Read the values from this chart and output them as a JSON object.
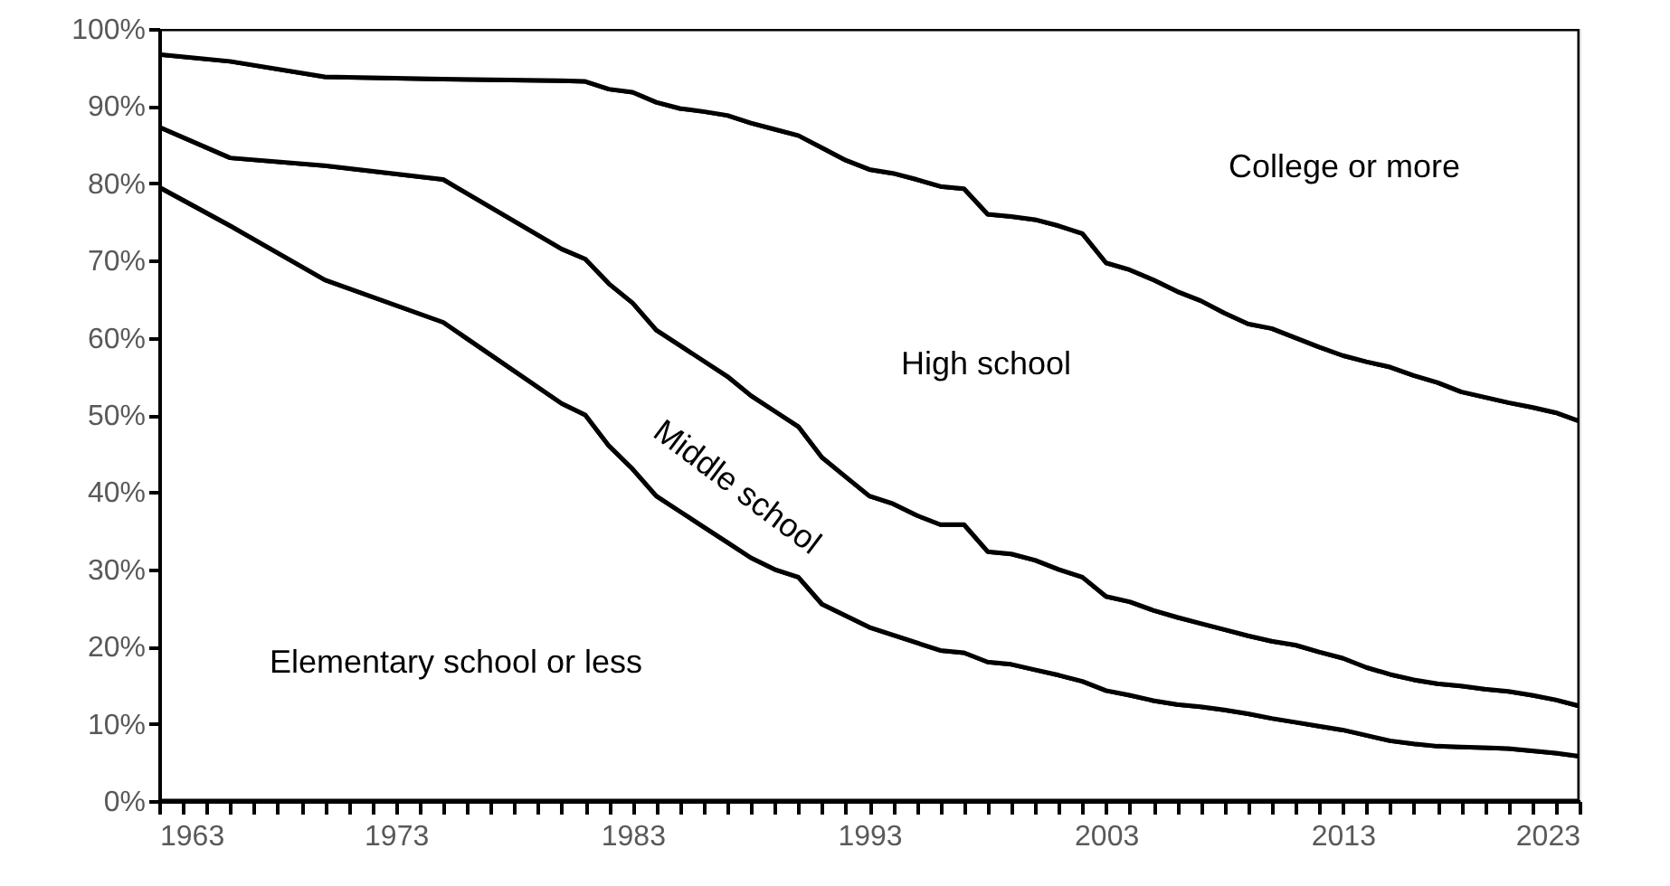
{
  "chart_data": {
    "type": "area",
    "stacked": true,
    "x": [
      1963,
      1966,
      1970,
      1975,
      1980,
      1981,
      1982,
      1983,
      1984,
      1985,
      1986,
      1987,
      1988,
      1989,
      1990,
      1991,
      1992,
      1993,
      1994,
      1995,
      1996,
      1997,
      1998,
      1999,
      2000,
      2001,
      2002,
      2003,
      2004,
      2005,
      2006,
      2007,
      2008,
      2009,
      2010,
      2011,
      2012,
      2013,
      2014,
      2015,
      2016,
      2017,
      2018,
      2019,
      2020,
      2021,
      2022,
      2023
    ],
    "series": [
      {
        "name": "Elementary school or less",
        "color": "#ffffff",
        "values": [
          79.5,
          74.5,
          67.5,
          62,
          51.5,
          50,
          46,
          43,
          39.5,
          37.5,
          35.5,
          33.5,
          31.5,
          30,
          29,
          25.5,
          24,
          22.5,
          21.5,
          20.5,
          19.5,
          19.2,
          18,
          17.7,
          17,
          16.3,
          15.5,
          14.3,
          13.7,
          13,
          12.5,
          12.2,
          11.8,
          11.3,
          10.7,
          10.2,
          9.7,
          9.2,
          8.5,
          7.8,
          7.4,
          7.1,
          7,
          6.9,
          6.8,
          6.5,
          6.2,
          5.8
        ]
      },
      {
        "name": "Middle school",
        "color": "#ffffff",
        "values": [
          7.8,
          8.8,
          14.8,
          18.5,
          20,
          20.2,
          21,
          21.5,
          21.5,
          21.5,
          21.5,
          21.5,
          21,
          20.5,
          19.5,
          19,
          18,
          17,
          17,
          16.5,
          16.3,
          16.6,
          14.3,
          14.3,
          14.2,
          13.7,
          13.5,
          12.2,
          12.1,
          11.7,
          11.3,
          10.8,
          10.4,
          10.1,
          10,
          10,
          9.6,
          9.3,
          8.8,
          8.6,
          8.3,
          8.1,
          7.9,
          7.6,
          7.4,
          7.2,
          6.9,
          6.5
        ]
      },
      {
        "name": "High school",
        "color": "#ffffff",
        "values": [
          9.4,
          12.5,
          11.5,
          13,
          21.8,
          23,
          25.2,
          27.3,
          29.5,
          30.7,
          32.3,
          33.8,
          35.3,
          36.5,
          37.7,
          40.1,
          41,
          42.3,
          42.8,
          43.5,
          43.8,
          43.5,
          43.7,
          43.7,
          44.1,
          44.5,
          44.5,
          43.2,
          43,
          42.8,
          42.2,
          41.8,
          41,
          40.4,
          40.5,
          39.8,
          39.5,
          39.2,
          39.6,
          39.8,
          39.4,
          39,
          38.1,
          37.8,
          37.4,
          37.3,
          37.2,
          36.9
        ]
      },
      {
        "name": "College or more",
        "color": "#ffffff",
        "values": [
          3.3,
          4.2,
          6.2,
          6.5,
          6.7,
          6.8,
          7.8,
          8.2,
          9.5,
          10.3,
          10.7,
          11.2,
          12.2,
          13,
          13.8,
          15.4,
          17,
          18.2,
          18.7,
          19.5,
          20.4,
          20.7,
          24,
          24.3,
          24.7,
          25.5,
          26.5,
          30.3,
          31.2,
          32.5,
          34,
          35.2,
          36.8,
          38.2,
          38.8,
          40,
          41.2,
          42.3,
          43.1,
          43.8,
          44.9,
          45.8,
          47,
          47.7,
          48.4,
          49,
          49.7,
          50.8
        ]
      }
    ],
    "xlim": [
      1963,
      2023
    ],
    "xticks": [
      1963,
      {
        "value": 1964,
        "label": null
      },
      {
        "value": 1965,
        "label": null
      },
      {
        "value": 1966,
        "label": null
      },
      {
        "value": 1967,
        "label": null
      },
      {
        "value": 1968,
        "label": null
      },
      {
        "value": 1969,
        "label": null
      },
      {
        "value": 1970,
        "label": null
      },
      {
        "value": 1971,
        "label": null
      },
      {
        "value": 1972,
        "label": null
      },
      1973,
      {
        "value": 1974,
        "label": null
      },
      {
        "value": 1975,
        "label": null
      },
      {
        "value": 1976,
        "label": null
      },
      {
        "value": 1977,
        "label": null
      },
      {
        "value": 1978,
        "label": null
      },
      {
        "value": 1979,
        "label": null
      },
      {
        "value": 1980,
        "label": null
      },
      {
        "value": 1981,
        "label": null
      },
      {
        "value": 1982,
        "label": null
      },
      1983,
      {
        "value": 1984,
        "label": null
      },
      {
        "value": 1985,
        "label": null
      },
      {
        "value": 1986,
        "label": null
      },
      {
        "value": 1987,
        "label": null
      },
      {
        "value": 1988,
        "label": null
      },
      {
        "value": 1989,
        "label": null
      },
      {
        "value": 1990,
        "label": null
      },
      {
        "value": 1991,
        "label": null
      },
      {
        "value": 1992,
        "label": null
      },
      1993,
      {
        "value": 1994,
        "label": null
      },
      {
        "value": 1995,
        "label": null
      },
      {
        "value": 1996,
        "label": null
      },
      {
        "value": 1997,
        "label": null
      },
      {
        "value": 1998,
        "label": null
      },
      {
        "value": 1999,
        "label": null
      },
      {
        "value": 2000,
        "label": null
      },
      {
        "value": 2001,
        "label": null
      },
      {
        "value": 2002,
        "label": null
      },
      2003,
      {
        "value": 2004,
        "label": null
      },
      {
        "value": 2005,
        "label": null
      },
      {
        "value": 2006,
        "label": null
      },
      {
        "value": 2007,
        "label": null
      },
      {
        "value": 2008,
        "label": null
      },
      {
        "value": 2009,
        "label": null
      },
      {
        "value": 2010,
        "label": null
      },
      {
        "value": 2011,
        "label": null
      },
      {
        "value": 2012,
        "label": null
      },
      2013,
      {
        "value": 2014,
        "label": null
      },
      {
        "value": 2015,
        "label": null
      },
      {
        "value": 2016,
        "label": null
      },
      {
        "value": 2017,
        "label": null
      },
      {
        "value": 2018,
        "label": null
      },
      {
        "value": 2019,
        "label": null
      },
      {
        "value": 2020,
        "label": null
      },
      {
        "value": 2021,
        "label": null
      },
      {
        "value": 2022,
        "label": null
      },
      2023
    ],
    "ylim": [
      0,
      100
    ],
    "yticks": [
      {
        "value": 0,
        "label": "0%"
      },
      {
        "value": 10,
        "label": "10%"
      },
      {
        "value": 20,
        "label": "20%"
      },
      {
        "value": 30,
        "label": "30%"
      },
      {
        "value": 40,
        "label": "40%"
      },
      {
        "value": 50,
        "label": "50%"
      },
      {
        "value": 60,
        "label": "60%"
      },
      {
        "value": 70,
        "label": "70%"
      },
      {
        "value": 80,
        "label": "80%"
      },
      {
        "value": 90,
        "label": "90%"
      },
      {
        "value": 100,
        "label": "100%"
      }
    ],
    "legend": false
  }
}
